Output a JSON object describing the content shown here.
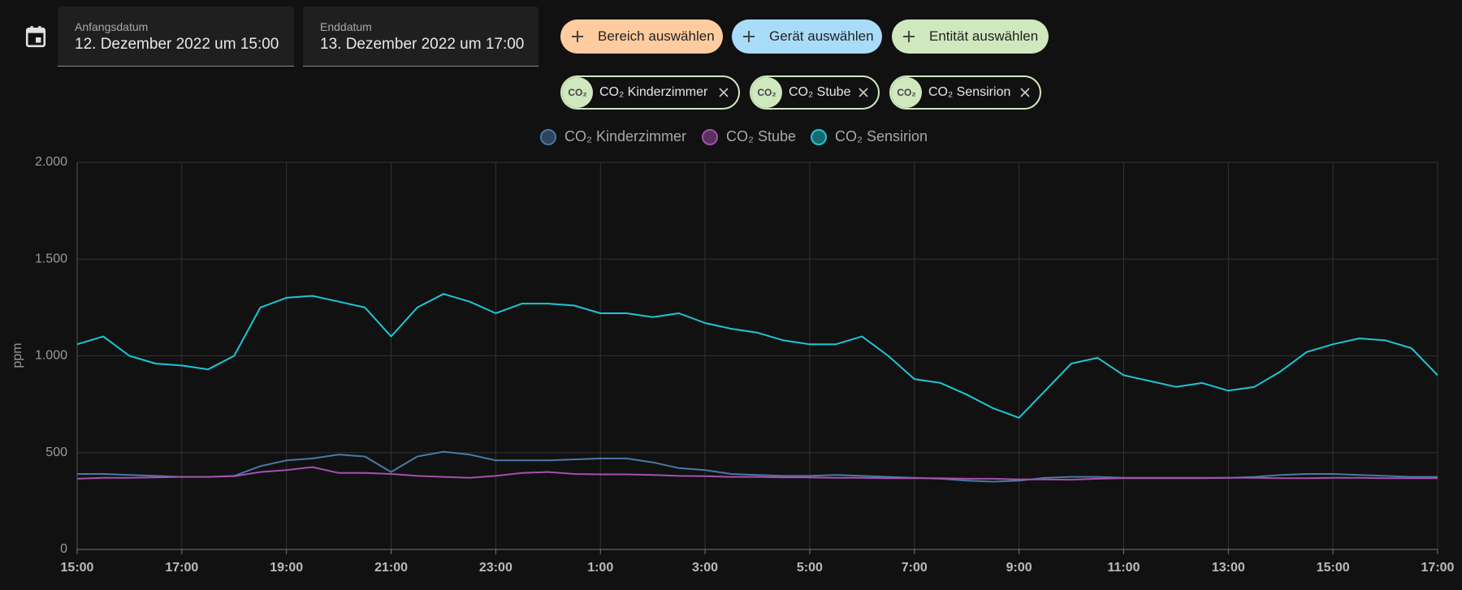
{
  "header": {
    "start_label": "Anfangsdatum",
    "start_value": "12. Dezember 2022 um 15:00",
    "end_label": "Enddatum",
    "end_value": "13. Dezember 2022 um 17:00",
    "buttons": [
      "Bereich auswählen",
      "Gerät auswählen",
      "Entität auswählen"
    ],
    "entities": [
      {
        "icon": "CO₂",
        "name": "CO₂ Kinderzimmer"
      },
      {
        "icon": "CO₂",
        "name": "CO₂ Stube"
      },
      {
        "icon": "CO₂",
        "name": "CO₂ Sensirion"
      }
    ]
  },
  "chart_data": {
    "type": "line",
    "ylabel": "ppm",
    "categories": [
      "15:00",
      null,
      null,
      null,
      "17:00",
      null,
      null,
      null,
      "19:00",
      null,
      null,
      null,
      "21:00",
      null,
      null,
      null,
      "23:00",
      null,
      null,
      null,
      "1:00",
      null,
      null,
      null,
      "3:00",
      null,
      null,
      null,
      "5:00",
      null,
      null,
      null,
      "7:00",
      null,
      null,
      null,
      "9:00",
      null,
      null,
      null,
      "11:00",
      null,
      null,
      null,
      "13:00",
      null,
      null,
      null,
      "15:00",
      null,
      null,
      null,
      "17:00"
    ],
    "ylim": [
      0,
      2000
    ],
    "yticks": [
      0,
      500,
      {
        "value": 1000,
        "label": "1.000"
      },
      {
        "value": 1500,
        "label": "1.500"
      },
      {
        "value": 2000,
        "label": "2.000"
      }
    ],
    "grid": true,
    "series": [
      {
        "name": "CO₂ Kinderzimmer",
        "color": "#4a78a8",
        "values": [
          390,
          390,
          385,
          380,
          375,
          375,
          380,
          430,
          460,
          470,
          490,
          480,
          400,
          480,
          505,
          490,
          460,
          460,
          460,
          465,
          470,
          470,
          450,
          420,
          410,
          390,
          385,
          380,
          380,
          385,
          380,
          375,
          370,
          365,
          355,
          350,
          355,
          370,
          375,
          375,
          370,
          370,
          370,
          370,
          370,
          375,
          385,
          390,
          390,
          385,
          380,
          375,
          375
        ]
      },
      {
        "name": "CO₂ Stube",
        "color": "#a650ae",
        "values": [
          365,
          370,
          370,
          372,
          375,
          375,
          378,
          400,
          410,
          425,
          395,
          395,
          390,
          380,
          375,
          370,
          380,
          395,
          400,
          390,
          388,
          388,
          385,
          380,
          378,
          375,
          375,
          372,
          372,
          370,
          370,
          368,
          368,
          368,
          365,
          365,
          362,
          362,
          360,
          365,
          368,
          368,
          368,
          368,
          370,
          370,
          368,
          368,
          370,
          370,
          368,
          368,
          368
        ]
      },
      {
        "name": "CO₂ Sensirion",
        "color": "#1cc6d6",
        "values": [
          1060,
          1100,
          1000,
          960,
          950,
          930,
          1000,
          1250,
          1300,
          1310,
          1280,
          1250,
          1100,
          1250,
          1320,
          1280,
          1220,
          1270,
          1270,
          1260,
          1220,
          1220,
          1200,
          1220,
          1170,
          1140,
          1120,
          1080,
          1060,
          1060,
          1100,
          1000,
          880,
          860,
          800,
          730,
          680,
          820,
          960,
          990,
          900,
          870,
          840,
          860,
          820,
          840,
          920,
          1020,
          1060,
          1090,
          1080,
          1040,
          900
        ]
      }
    ]
  }
}
